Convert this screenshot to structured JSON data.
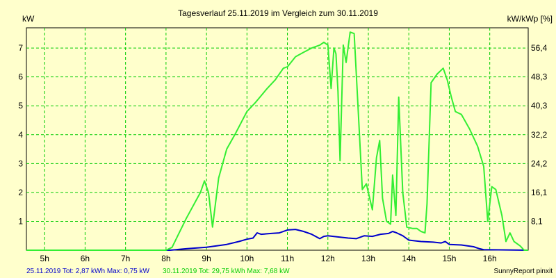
{
  "chart_data": {
    "type": "line",
    "title": "Tagesverlauf 25.11.2019 im Vergleich zum 30.11.2019",
    "ylabel_left": "kW",
    "ylabel_right": "kW/kWp [%]",
    "x_ticks": [
      "5h",
      "6h",
      "7h",
      "8h",
      "9h",
      "10h",
      "11h",
      "12h",
      "13h",
      "14h",
      "15h",
      "16h"
    ],
    "x_tick_values": [
      5,
      6,
      7,
      8,
      9,
      10,
      11,
      12,
      13,
      14,
      15,
      16
    ],
    "y_left_ticks": [
      "1",
      "2",
      "3",
      "4",
      "5",
      "6",
      "7"
    ],
    "y_left_tick_values": [
      1,
      2,
      3,
      4,
      5,
      6,
      7
    ],
    "y_right_ticks": [
      "8,1",
      "16,1",
      "24,2",
      "32,2",
      "40,3",
      "48,3",
      "56,4"
    ],
    "xlim": [
      4.55,
      16.95
    ],
    "ylim": [
      0,
      7.7
    ],
    "grid": true,
    "colors": {
      "background": "#ffffcc",
      "plot_border": "#000000",
      "grid": "#00cc00",
      "series1": "#0000cc",
      "series2": "#33ee33"
    },
    "series": [
      {
        "name": "25.11.2019",
        "color": "#0000cc",
        "points": [
          [
            4.55,
            0
          ],
          [
            8.1,
            0
          ],
          [
            8.5,
            0.05
          ],
          [
            9.0,
            0.1
          ],
          [
            9.5,
            0.2
          ],
          [
            9.8,
            0.3
          ],
          [
            10.0,
            0.38
          ],
          [
            10.15,
            0.42
          ],
          [
            10.25,
            0.6
          ],
          [
            10.35,
            0.55
          ],
          [
            10.6,
            0.58
          ],
          [
            10.8,
            0.6
          ],
          [
            11.0,
            0.7
          ],
          [
            11.2,
            0.72
          ],
          [
            11.4,
            0.65
          ],
          [
            11.6,
            0.55
          ],
          [
            11.8,
            0.4
          ],
          [
            11.9,
            0.48
          ],
          [
            12.0,
            0.5
          ],
          [
            12.3,
            0.45
          ],
          [
            12.5,
            0.42
          ],
          [
            12.7,
            0.4
          ],
          [
            12.9,
            0.5
          ],
          [
            13.1,
            0.48
          ],
          [
            13.3,
            0.55
          ],
          [
            13.5,
            0.58
          ],
          [
            13.6,
            0.65
          ],
          [
            13.7,
            0.6
          ],
          [
            13.85,
            0.5
          ],
          [
            14.0,
            0.35
          ],
          [
            14.3,
            0.3
          ],
          [
            14.6,
            0.28
          ],
          [
            14.8,
            0.25
          ],
          [
            14.9,
            0.3
          ],
          [
            15.0,
            0.2
          ],
          [
            15.3,
            0.18
          ],
          [
            15.6,
            0.12
          ],
          [
            15.75,
            0.05
          ],
          [
            15.85,
            0.02
          ],
          [
            16.95,
            0
          ]
        ]
      },
      {
        "name": "30.11.2019",
        "color": "#33ee33",
        "points": [
          [
            4.55,
            0
          ],
          [
            8.0,
            0
          ],
          [
            8.15,
            0.1
          ],
          [
            8.5,
            1.1
          ],
          [
            8.85,
            2.0
          ],
          [
            8.9,
            2.2
          ],
          [
            8.95,
            2.4
          ],
          [
            9.05,
            2.0
          ],
          [
            9.15,
            0.8
          ],
          [
            9.3,
            2.5
          ],
          [
            9.5,
            3.5
          ],
          [
            9.7,
            4.0
          ],
          [
            10.0,
            4.8
          ],
          [
            10.2,
            5.1
          ],
          [
            10.5,
            5.6
          ],
          [
            10.7,
            5.9
          ],
          [
            10.9,
            6.3
          ],
          [
            11.0,
            6.35
          ],
          [
            11.2,
            6.7
          ],
          [
            11.4,
            6.85
          ],
          [
            11.6,
            7.0
          ],
          [
            11.8,
            7.1
          ],
          [
            11.9,
            7.2
          ],
          [
            12.0,
            7.1
          ],
          [
            12.08,
            5.6
          ],
          [
            12.15,
            7.0
          ],
          [
            12.2,
            6.8
          ],
          [
            12.25,
            5.5
          ],
          [
            12.3,
            3.1
          ],
          [
            12.38,
            7.1
          ],
          [
            12.45,
            6.5
          ],
          [
            12.55,
            7.55
          ],
          [
            12.65,
            7.5
          ],
          [
            12.75,
            4.8
          ],
          [
            12.85,
            2.1
          ],
          [
            12.95,
            2.3
          ],
          [
            13.1,
            1.4
          ],
          [
            13.2,
            3.2
          ],
          [
            13.28,
            3.8
          ],
          [
            13.35,
            1.8
          ],
          [
            13.45,
            1.0
          ],
          [
            13.55,
            0.9
          ],
          [
            13.6,
            2.6
          ],
          [
            13.68,
            1.2
          ],
          [
            13.75,
            5.3
          ],
          [
            13.85,
            2.0
          ],
          [
            13.95,
            0.8
          ],
          [
            14.1,
            0.75
          ],
          [
            14.2,
            0.75
          ],
          [
            14.3,
            0.65
          ],
          [
            14.4,
            0.6
          ],
          [
            14.45,
            1.6
          ],
          [
            14.55,
            5.8
          ],
          [
            14.7,
            6.1
          ],
          [
            14.85,
            6.3
          ],
          [
            14.95,
            5.9
          ],
          [
            15.05,
            5.3
          ],
          [
            15.15,
            4.8
          ],
          [
            15.3,
            4.7
          ],
          [
            15.5,
            4.2
          ],
          [
            15.7,
            3.6
          ],
          [
            15.85,
            2.9
          ],
          [
            15.95,
            1.0
          ],
          [
            16.05,
            2.2
          ],
          [
            16.15,
            2.1
          ],
          [
            16.3,
            1.2
          ],
          [
            16.4,
            0.3
          ],
          [
            16.5,
            0.6
          ],
          [
            16.6,
            0.3
          ],
          [
            16.75,
            0.15
          ],
          [
            16.85,
            0
          ],
          [
            16.95,
            0
          ]
        ]
      }
    ],
    "footer": {
      "series1_text": "25.11.2019 Tot: 2,87 kWh Max: 0,75 kW",
      "series2_text": "30.11.2019 Tot: 29,75 kWh Max: 7,68 kW",
      "brand": "SunnyReport pinxit"
    }
  }
}
